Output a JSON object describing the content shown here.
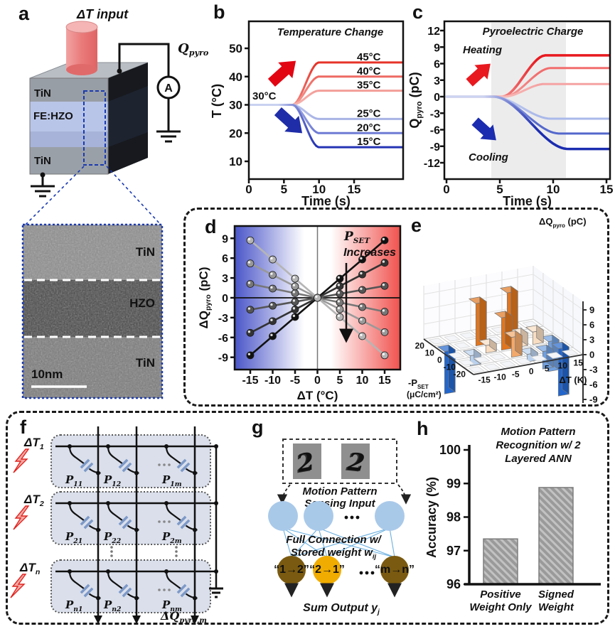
{
  "panels": {
    "a": {
      "label": "a",
      "dt_input": "ΔT input",
      "charge_main": "Q",
      "charge_sub": "pyro",
      "ammeter": "A",
      "stack_labels": [
        "TiN",
        "FE:HZO",
        "TiN"
      ],
      "tem": {
        "layer_labels": [
          "TiN",
          "HZO",
          "TiN"
        ],
        "scale_label": "10nm"
      }
    },
    "b": {
      "label": "b"
    },
    "c": {
      "label": "c"
    },
    "d": {
      "label": "d"
    },
    "e": {
      "label": "e"
    },
    "f": {
      "label": "f",
      "cell_prefix": "P",
      "dots": "⋯",
      "row_labels": [
        {
          "main": "ΔT",
          "sub": "1"
        },
        {
          "main": "ΔT",
          "sub": "2"
        },
        {
          "main": "ΔT",
          "sub": "n"
        }
      ],
      "cell_labels": [
        [
          "11",
          "12",
          "1m"
        ],
        [
          "21",
          "22",
          "2m"
        ],
        [
          "n1",
          "n2",
          "nm"
        ]
      ],
      "output_main": "ΔQ",
      "output_sub": "pyro,m"
    },
    "g": {
      "label": "g",
      "digits": [
        "2",
        "2"
      ],
      "input_caption": [
        "Motion Pattern",
        "Sensing Input"
      ],
      "weight_caption_line1": "Full Connection w/",
      "weight_caption_line2": "Stored weight w",
      "weight_sub": "ij",
      "outputs": [
        "“1→2”",
        "“2→1”",
        "“m→n”"
      ],
      "output_colors": [
        "#7a5a10",
        "#f0ac00",
        "#7a5a10"
      ],
      "sum_caption": "Sum Output y",
      "sum_sub": "j",
      "node_color": "#a9c9e9",
      "link_color": "#5aa7dc"
    },
    "h": {
      "label": "h"
    }
  },
  "chart_data": [
    {
      "id": "b",
      "type": "line",
      "title": "Temperature Change",
      "xlabel": "Time (s)",
      "ylabel": "T (°C)",
      "xticks": [
        0,
        5,
        10,
        15
      ],
      "yticks": [
        10,
        20,
        30,
        40,
        50
      ],
      "xlim": [
        0,
        22
      ],
      "ylim": [
        4,
        57
      ],
      "start_value": 30,
      "start_label": "30°C",
      "step_start": 6.2,
      "step_end": 10,
      "series": [
        {
          "label": "45°C",
          "final": 45,
          "color": "#e63329",
          "pre": "#f8c8c4"
        },
        {
          "label": "40°C",
          "final": 40,
          "color": "#ee6a62",
          "pre": "#f8c8c4"
        },
        {
          "label": "35°C",
          "final": 35,
          "color": "#f39e99",
          "pre": "#f8c8c4"
        },
        {
          "label": "25°C",
          "final": 25,
          "color": "#a9b4e6",
          "pre": "#c9d1f0"
        },
        {
          "label": "20°C",
          "final": 20,
          "color": "#6e7bd4",
          "pre": "#c9d1f0"
        },
        {
          "label": "15°C",
          "final": 15,
          "color": "#2433b4",
          "pre": "#c9d1f0"
        }
      ],
      "heat_arrow_color": "#e20613",
      "cool_arrow_color": "#1f2da8"
    },
    {
      "id": "c",
      "type": "line",
      "title": "Pyroelectric Charge",
      "xlabel": "Time (s)",
      "ylabel_main": "Q",
      "ylabel_sub": "pyro",
      "ylabel_unit": " (pC)",
      "xticks": [
        0,
        5,
        10,
        15
      ],
      "yticks": [
        12,
        9,
        6,
        3,
        0,
        -3,
        -6,
        -9,
        -12
      ],
      "xlim": [
        0,
        17.4
      ],
      "ylim": [
        -13.5,
        13.5
      ],
      "band": [
        4.2,
        11.2
      ],
      "heating_label": "Heating",
      "cooling_label": "Cooling",
      "heat_color": "#e8191f",
      "cool_color": "#1b2cb0",
      "series": [
        {
          "final": 7.5,
          "color": "#e8191f",
          "pre": "#f8c8c4",
          "t0": 5.2,
          "t1": 9.3
        },
        {
          "final": 5.2,
          "color": "#f26d6d",
          "pre": "#f8c8c4",
          "t0": 5.4,
          "t1": 9.8
        },
        {
          "final": 2.3,
          "color": "#f5a3a3",
          "pre": "#f8c8c4",
          "t0": 5.4,
          "t1": 9.2
        },
        {
          "final": -4.0,
          "color": "#aab9ea",
          "pre": "#ccd4f2",
          "t0": 4.4,
          "t1": 9.8
        },
        {
          "final": -6.7,
          "color": "#5468cc",
          "pre": "#ccd4f2",
          "t0": 4.4,
          "t1": 10.6
        },
        {
          "final": -9.5,
          "color": "#1b2cb0",
          "pre": "#ccd4f2",
          "t0": 4.4,
          "t1": 11.4
        }
      ]
    },
    {
      "id": "d",
      "type": "scatter-line",
      "xlabel": "ΔT (°C)",
      "ylabel_main": "ΔQ",
      "ylabel_sub": "pyro",
      "ylabel_unit": " (pC)",
      "xticks": [
        -15,
        -10,
        -5,
        0,
        5,
        10,
        15
      ],
      "yticks": [
        9,
        6,
        3,
        0,
        -3,
        -6,
        -9
      ],
      "x": [
        -15,
        -10,
        -5,
        0,
        5,
        10,
        15
      ],
      "annotation_main": "P",
      "annotation_sub": "SET",
      "annotation2": "Increases",
      "series": [
        {
          "q_at_15": 8.7,
          "color": "#111111"
        },
        {
          "q_at_15": 5.3,
          "color": "#333333"
        },
        {
          "q_at_15": 1.8,
          "color": "#555555"
        },
        {
          "q_at_15": -2.1,
          "color": "#777777"
        },
        {
          "q_at_15": -5.2,
          "color": "#999999"
        },
        {
          "q_at_15": -8.7,
          "color": "#b5b5b5"
        }
      ],
      "bg_left": "#4a55c8",
      "bg_right": "#f0524e"
    },
    {
      "id": "e",
      "type": "bar3d",
      "title_main": "ΔQ",
      "title_sub": "pyro",
      "title_unit": " (pC)",
      "zticks": [
        9,
        6,
        3,
        0,
        -3,
        -6,
        -9
      ],
      "xlabel": "ΔT (K)",
      "xticks": [
        -15,
        -10,
        -5,
        0,
        5,
        10,
        15
      ],
      "ylabel_line1": "-P",
      "ylabel_sub": "SET",
      "ylabel_line2": "(μC/cm²)",
      "yticks": [
        -20,
        -10,
        0,
        10,
        20
      ],
      "bars": [
        {
          "dt_i": 0,
          "p_i": 1,
          "q": -8.5
        },
        {
          "dt_i": 1,
          "p_i": 2,
          "q": -2
        },
        {
          "dt_i": 2,
          "p_i": 2,
          "q": 1.5
        },
        {
          "dt_i": 2,
          "p_i": 1,
          "q": 8.5
        },
        {
          "dt_i": 3,
          "p_i": 2,
          "q": 6.5
        },
        {
          "dt_i": 3,
          "p_i": 3,
          "q": 4
        },
        {
          "dt_i": 4,
          "p_i": 1,
          "q": 9.5
        },
        {
          "dt_i": 4,
          "p_i": 2,
          "q": 2.5
        },
        {
          "dt_i": 5,
          "p_i": 2,
          "q": 2.5
        },
        {
          "dt_i": 4,
          "p_i": 3,
          "q": -1.5
        },
        {
          "dt_i": 5,
          "p_i": 3,
          "q": -3.5
        },
        {
          "dt_i": 6,
          "p_i": 2,
          "q": -6
        },
        {
          "dt_i": 6,
          "p_i": 3,
          "q": -9.5
        }
      ],
      "colors": {
        "pos_high": "#e0761f",
        "pos_mid": "#f2a96b",
        "pos_low": "#f8ddc2",
        "zero": "#f3f5f8",
        "neg_low": "#b9d1ee",
        "neg_mid": "#6f9fdf",
        "neg_high": "#2266cc"
      }
    },
    {
      "id": "h",
      "type": "bar",
      "title_lines": [
        "Motion Pattern",
        "Recognition w/ 2",
        "Layered ANN"
      ],
      "ylabel": "Accuracy (%)",
      "ylim": [
        96,
        100
      ],
      "yticks": [
        96,
        97,
        98,
        99,
        100
      ],
      "categories": [
        [
          "Positive",
          "Weight Only"
        ],
        [
          "Signed",
          "Weight"
        ]
      ],
      "values": [
        97.35,
        98.88
      ],
      "bar_color": "#9a9a9a"
    }
  ]
}
